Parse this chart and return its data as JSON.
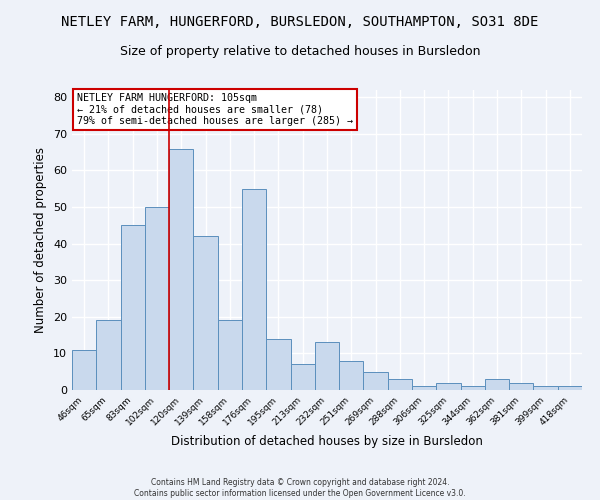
{
  "title": "NETLEY FARM, HUNGERFORD, BURSLEDON, SOUTHAMPTON, SO31 8DE",
  "subtitle": "Size of property relative to detached houses in Bursledon",
  "xlabel": "Distribution of detached houses by size in Bursledon",
  "ylabel": "Number of detached properties",
  "bar_labels": [
    "46sqm",
    "65sqm",
    "83sqm",
    "102sqm",
    "120sqm",
    "139sqm",
    "158sqm",
    "176sqm",
    "195sqm",
    "213sqm",
    "232sqm",
    "251sqm",
    "269sqm",
    "288sqm",
    "306sqm",
    "325sqm",
    "344sqm",
    "362sqm",
    "381sqm",
    "399sqm",
    "418sqm"
  ],
  "bar_values": [
    11,
    19,
    45,
    50,
    66,
    42,
    19,
    55,
    14,
    7,
    13,
    8,
    5,
    3,
    1,
    2,
    1,
    3,
    2,
    1,
    1
  ],
  "bar_color": "#c9d9ed",
  "bar_edge_color": "#5b8fbd",
  "vline_x": 3.5,
  "vline_color": "#cc0000",
  "ylim": [
    0,
    82
  ],
  "yticks": [
    0,
    10,
    20,
    30,
    40,
    50,
    60,
    70,
    80
  ],
  "annotation_title": "NETLEY FARM HUNGERFORD: 105sqm",
  "annotation_line1": "← 21% of detached houses are smaller (78)",
  "annotation_line2": "79% of semi-detached houses are larger (285) →",
  "annotation_box_color": "#ffffff",
  "annotation_box_edge": "#cc0000",
  "footer_line1": "Contains HM Land Registry data © Crown copyright and database right 2024.",
  "footer_line2": "Contains public sector information licensed under the Open Government Licence v3.0.",
  "background_color": "#eef2f9",
  "grid_color": "#ffffff",
  "title_fontsize": 10,
  "subtitle_fontsize": 9
}
